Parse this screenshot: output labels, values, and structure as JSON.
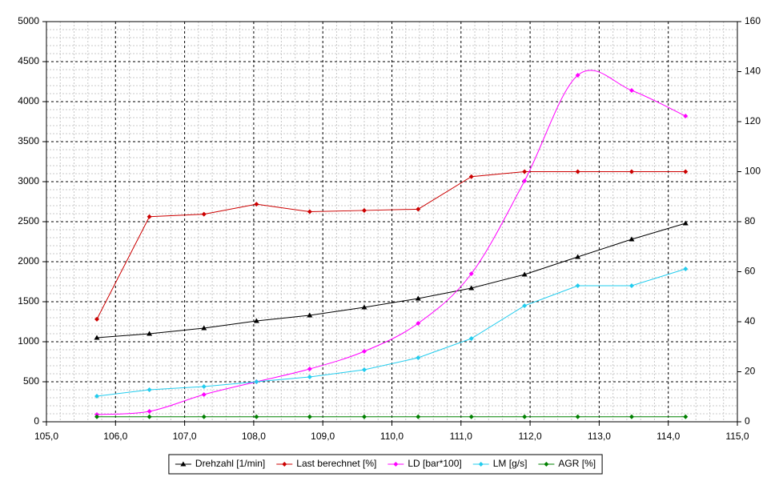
{
  "chart_data": {
    "type": "line",
    "x": [
      105.73,
      106.49,
      107.28,
      108.04,
      108.81,
      109.6,
      110.38,
      111.15,
      111.92,
      112.69,
      113.47,
      114.25
    ],
    "series": [
      {
        "name": "Drehzahl [1/min]",
        "color": "#000000",
        "marker": "triangle",
        "values": [
          1050,
          1100,
          1170,
          1260,
          1330,
          1430,
          1540,
          1670,
          1840,
          2060,
          2280,
          2480
        ]
      },
      {
        "name": "Last berechnet [%]",
        "color": "#cc0000",
        "marker": "diamond",
        "axis": "y2",
        "values": [
          41,
          82,
          83,
          87,
          84,
          84.5,
          85,
          98,
          100,
          100,
          100,
          100
        ]
      },
      {
        "name": "LD [bar*100]",
        "color": "#ff00ff",
        "marker": "diamond",
        "smooth": true,
        "values": [
          90,
          130,
          340,
          500,
          660,
          880,
          1230,
          1850,
          3010,
          4330,
          4140,
          3820
        ]
      },
      {
        "name": "LM [g/s]",
        "color": "#22ccee",
        "marker": "diamond",
        "values": [
          320,
          400,
          440,
          500,
          560,
          650,
          800,
          1040,
          1450,
          1700,
          1700,
          1910
        ]
      },
      {
        "name": "AGR [%]",
        "color": "#008000",
        "marker": "diamond",
        "axis": "y2",
        "values": [
          2,
          2,
          2,
          2,
          2,
          2,
          2,
          2,
          2,
          2,
          2,
          2
        ]
      }
    ],
    "xlim": [
      105,
      115
    ],
    "xticks": [
      {
        "value": 105,
        "label": "105,0"
      },
      {
        "value": 106,
        "label": "106,0"
      },
      {
        "value": 107,
        "label": "107,0"
      },
      {
        "value": 108,
        "label": "108,0"
      },
      {
        "value": 109,
        "label": "109,0"
      },
      {
        "value": 110,
        "label": "110,0"
      },
      {
        "value": 111,
        "label": "111,0"
      },
      {
        "value": 112,
        "label": "112,0"
      },
      {
        "value": 113,
        "label": "113,0"
      },
      {
        "value": 114,
        "label": "114,0"
      },
      {
        "value": 115,
        "label": "115,0"
      }
    ],
    "ylim": [
      0,
      5000
    ],
    "yticks": [
      0,
      500,
      1000,
      1500,
      2000,
      2500,
      3000,
      3500,
      4000,
      4500,
      5000
    ],
    "y2lim": [
      0,
      160
    ],
    "y2ticks": [
      0,
      20,
      40,
      60,
      80,
      100,
      120,
      140,
      160
    ],
    "grid": true,
    "minor_grid": true,
    "legend": "bottom"
  }
}
